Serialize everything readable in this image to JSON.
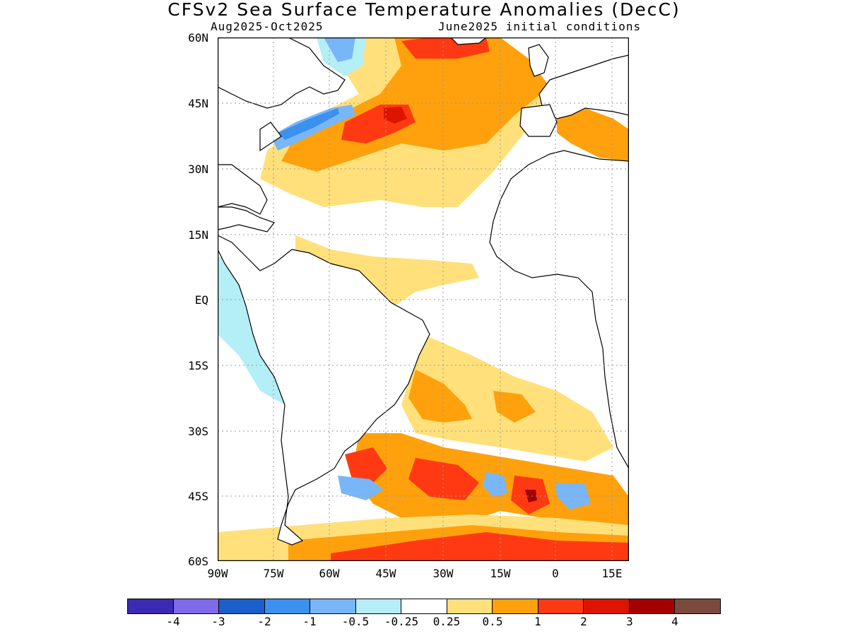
{
  "title": "CFSv2 Sea Surface Temperature Anomalies (DecC)",
  "subtitle_left": "Aug2025-Oct2025",
  "subtitle_right": "June2025 initial conditions",
  "lat_labels": [
    "60N",
    "45N",
    "30N",
    "15N",
    "EQ",
    "15S",
    "30S",
    "45S",
    "60S"
  ],
  "lon_labels": [
    "90W",
    "75W",
    "60W",
    "45W",
    "30W",
    "15W",
    "0",
    "15E"
  ],
  "colorbar": {
    "colors": [
      "#3a2bb3",
      "#7f6aea",
      "#1b5fcc",
      "#3c91ef",
      "#79b6f7",
      "#b4eef7",
      "#ffffff",
      "#ffe07a",
      "#ffa10c",
      "#ff3a12",
      "#dd1500",
      "#a50000",
      "#7a4a3c"
    ],
    "labels": [
      "-4",
      "-3",
      "-2",
      "-1",
      "-0.5",
      "-0.25",
      "0.25",
      "0.5",
      "1",
      "2",
      "3",
      "4"
    ]
  },
  "colors": {
    "land": "#ffffff",
    "coastline": "#000000",
    "grid": "#999999"
  }
}
